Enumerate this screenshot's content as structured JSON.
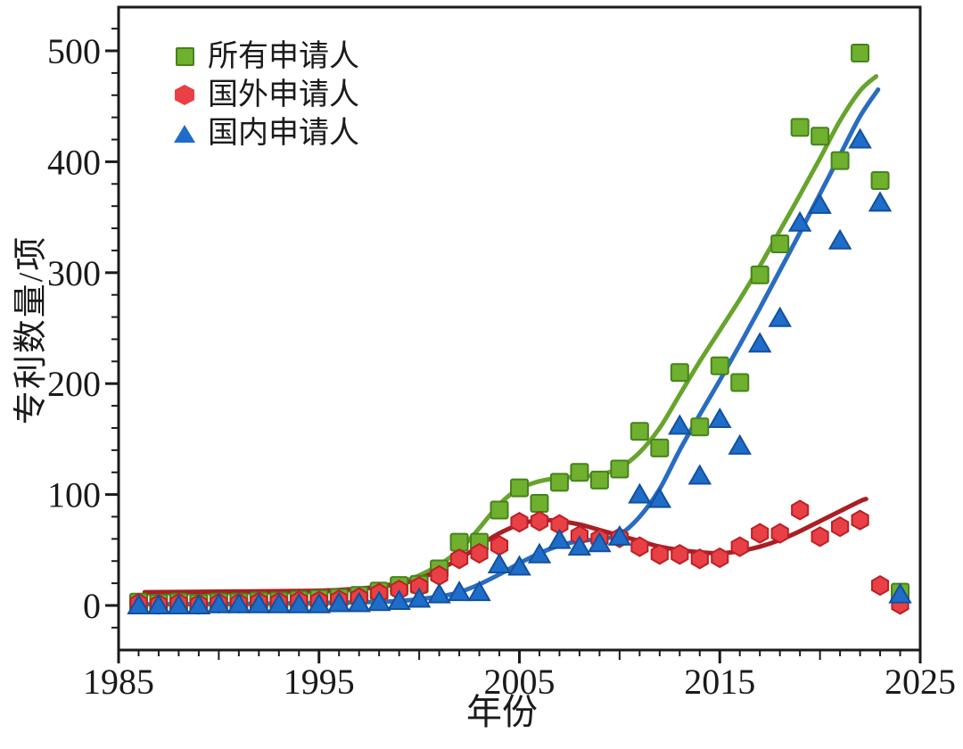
{
  "figure": {
    "background": "#ffffff",
    "frame_color": "#1a1a1a"
  },
  "chart_data": {
    "type": "scatter",
    "title": "",
    "xlabel": "年份",
    "ylabel": "专利数量/项",
    "x_range": [
      1985,
      2025
    ],
    "y_range": [
      -40,
      539
    ],
    "x_major_ticks": [
      1985,
      1995,
      2005,
      2015,
      2025
    ],
    "x_medium_ticks": [
      1990,
      2000,
      2010,
      2020
    ],
    "x_minor_step": 1,
    "y_major_ticks": [
      0,
      100,
      200,
      300,
      400,
      500
    ],
    "y_minor_step": 20,
    "grid": false,
    "legend_position": "top-left-inside",
    "years": [
      1986,
      1987,
      1988,
      1989,
      1990,
      1991,
      1992,
      1993,
      1994,
      1995,
      1996,
      1997,
      1998,
      1999,
      2000,
      2001,
      2002,
      2003,
      2004,
      2005,
      2006,
      2007,
      2008,
      2009,
      2010,
      2011,
      2012,
      2013,
      2014,
      2015,
      2016,
      2017,
      2018,
      2019,
      2020,
      2021,
      2022,
      2023,
      2024
    ],
    "series": [
      {
        "key": "all",
        "name": "所有申请人",
        "marker": "square",
        "fill": "#6fb02e",
        "edge": "#45831a",
        "trend_color": "#67a42c",
        "values": [
          3,
          2,
          3,
          2,
          3,
          3,
          4,
          4,
          5,
          6,
          7,
          9,
          13,
          18,
          19,
          33,
          57,
          57,
          86,
          106,
          92,
          111,
          120,
          113,
          123,
          157,
          142,
          210,
          161,
          216,
          201,
          298,
          326,
          431,
          423,
          401,
          498,
          383,
          12
        ],
        "trend_points": [
          [
            1986.3,
            10.5
          ],
          [
            1990,
            11
          ],
          [
            1994,
            12
          ],
          [
            1996,
            13
          ],
          [
            1998,
            17
          ],
          [
            2000,
            27
          ],
          [
            2002,
            50
          ],
          [
            2004,
            91
          ],
          [
            2005,
            105
          ],
          [
            2006,
            112
          ],
          [
            2007,
            115
          ],
          [
            2008,
            116
          ],
          [
            2009,
            118
          ],
          [
            2010,
            124
          ],
          [
            2011,
            138
          ],
          [
            2012,
            160
          ],
          [
            2013,
            190
          ],
          [
            2014,
            220
          ],
          [
            2015,
            248
          ],
          [
            2016,
            276
          ],
          [
            2017,
            306
          ],
          [
            2018,
            338
          ],
          [
            2019,
            370
          ],
          [
            2020,
            403
          ],
          [
            2021,
            437
          ],
          [
            2022,
            464
          ],
          [
            2022.8,
            477
          ]
        ]
      },
      {
        "key": "foreign",
        "name": "国外申请人",
        "marker": "hexagon",
        "fill": "#e84045",
        "edge": "#bb2026",
        "trend_color": "#a81f24",
        "values": [
          2,
          1,
          2,
          1,
          2,
          2,
          3,
          3,
          4,
          4,
          5,
          7,
          11,
          14,
          17,
          27,
          42,
          47,
          54,
          75,
          76,
          73,
          63,
          60,
          61,
          53,
          46,
          46,
          42,
          43,
          53,
          65,
          65,
          86,
          62,
          71,
          77,
          18,
          1
        ],
        "trend_points": [
          [
            1986.3,
            12
          ],
          [
            1990,
            12.5
          ],
          [
            1994,
            13
          ],
          [
            1996,
            14
          ],
          [
            1998,
            17
          ],
          [
            2000,
            24
          ],
          [
            2002,
            42
          ],
          [
            2003,
            54
          ],
          [
            2004,
            65
          ],
          [
            2005,
            73
          ],
          [
            2006,
            77
          ],
          [
            2007,
            76
          ],
          [
            2008,
            73
          ],
          [
            2009,
            68
          ],
          [
            2010,
            63
          ],
          [
            2011,
            58
          ],
          [
            2012,
            53
          ],
          [
            2013,
            50
          ],
          [
            2014,
            48
          ],
          [
            2015,
            47
          ],
          [
            2016,
            49
          ],
          [
            2017,
            53
          ],
          [
            2018,
            59
          ],
          [
            2019,
            67
          ],
          [
            2020,
            76
          ],
          [
            2021,
            85
          ],
          [
            2022,
            94
          ],
          [
            2022.3,
            96
          ]
        ]
      },
      {
        "key": "domestic",
        "name": "国内申请人",
        "marker": "triangle-up",
        "fill": "#1e6dc9",
        "edge": "#12509e",
        "trend_color": "#2a6cc0",
        "values": [
          0,
          0,
          0,
          0,
          1,
          1,
          1,
          1,
          1,
          1,
          2,
          2,
          3,
          4,
          6,
          10,
          12,
          12,
          37,
          35,
          46,
          59,
          53,
          56,
          62,
          100,
          96,
          162,
          117,
          168,
          144,
          236,
          259,
          345,
          361,
          329,
          420,
          363,
          10
        ],
        "trend_points": [
          [
            1986,
            1
          ],
          [
            1992,
            1.5
          ],
          [
            1996,
            2.5
          ],
          [
            1999,
            4
          ],
          [
            2001,
            8
          ],
          [
            2002,
            12
          ],
          [
            2003,
            19
          ],
          [
            2004,
            28
          ],
          [
            2005,
            38
          ],
          [
            2006,
            47
          ],
          [
            2007,
            54
          ],
          [
            2008,
            58
          ],
          [
            2009,
            60
          ],
          [
            2010,
            64
          ],
          [
            2011,
            80
          ],
          [
            2012,
            105
          ],
          [
            2013,
            140
          ],
          [
            2014,
            172
          ],
          [
            2015,
            203
          ],
          [
            2016,
            235
          ],
          [
            2017,
            268
          ],
          [
            2018,
            302
          ],
          [
            2019,
            336
          ],
          [
            2020,
            371
          ],
          [
            2021,
            406
          ],
          [
            2022,
            441
          ],
          [
            2022.9,
            465
          ]
        ]
      }
    ]
  }
}
